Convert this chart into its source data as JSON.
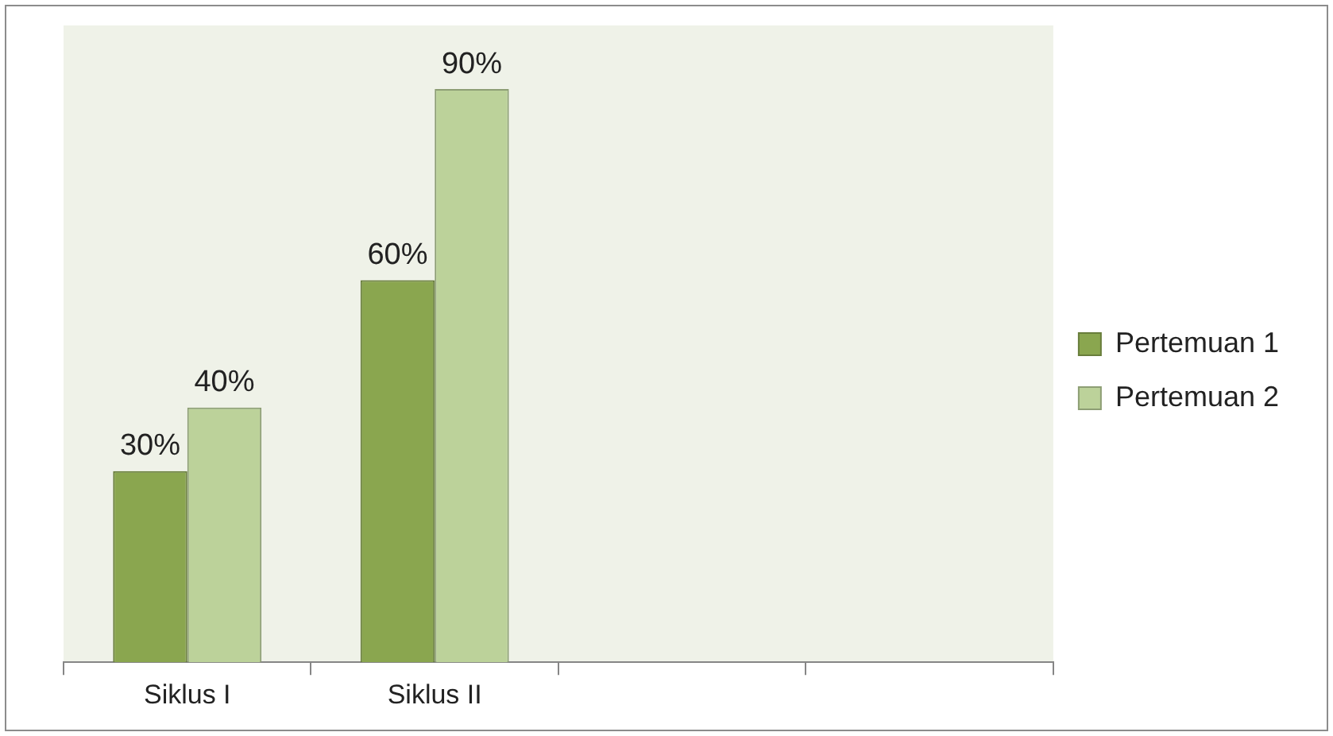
{
  "chart_data": {
    "type": "bar",
    "categories": [
      "Siklus I",
      "Siklus II",
      null,
      null
    ],
    "series": [
      {
        "name": "Pertemuan 1",
        "color": "#8aa64f",
        "values": [
          30,
          60,
          null,
          null
        ],
        "value_labels": [
          "30%",
          "60%",
          null,
          null
        ]
      },
      {
        "name": "Pertemuan 2",
        "color": "#bcd29a",
        "values": [
          40,
          90,
          null,
          null
        ],
        "value_labels": [
          "40%",
          "90%",
          null,
          null
        ]
      }
    ],
    "legend": "right"
  }
}
